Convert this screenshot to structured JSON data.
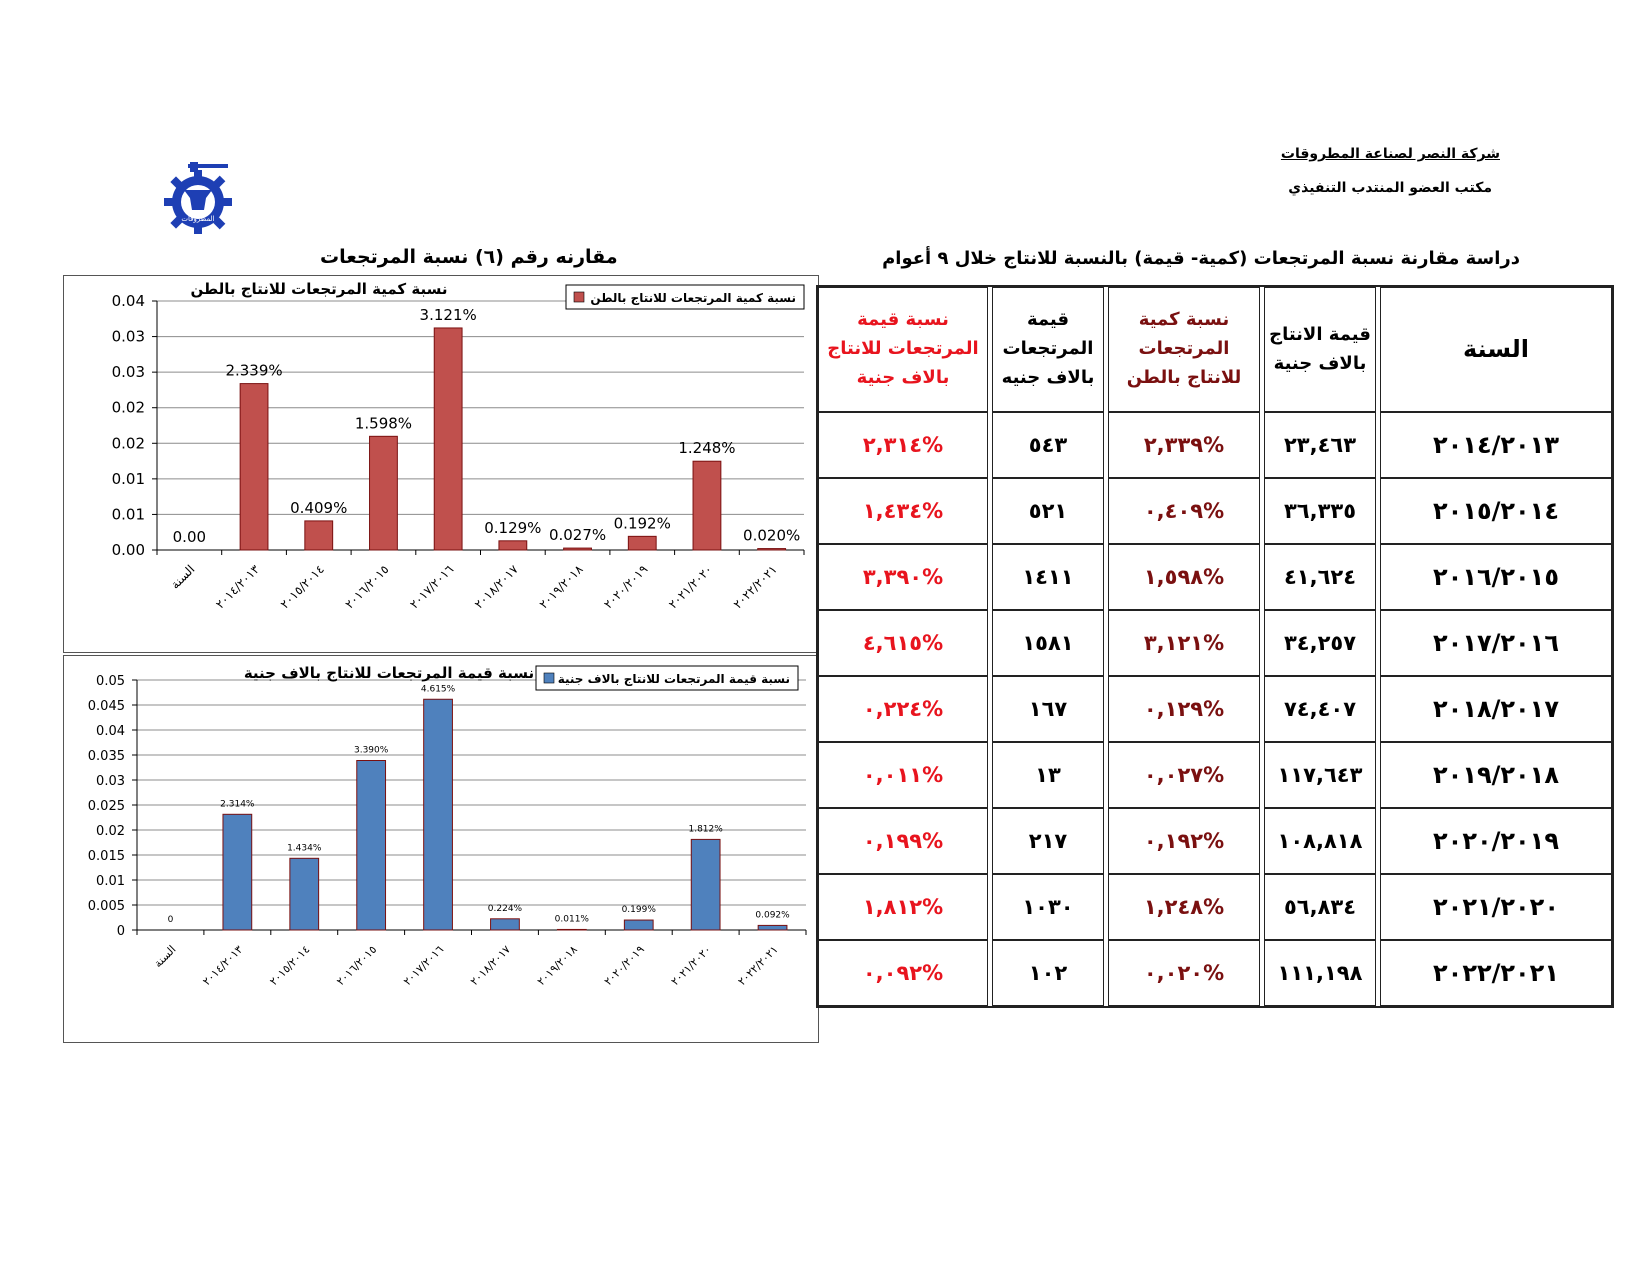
{
  "header": {
    "company": "شركة النصر لصناعة المطروقات",
    "office": "مكتب العضو المنتدب التنفيذي",
    "logo_text": "المطروقات",
    "study_title": "دراسة مقارنة نسبة المرتجعات (كمية- قيمة) بالنسبة للانتاج خلال ٩ أعوام",
    "comparison_title": "مقارنه رقم (٦) نسبة المرتجعات"
  },
  "colors": {
    "bar_red": "#c0504d",
    "bar_blue": "#4f81bd",
    "text_red": "#e8141e",
    "text_dark_red": "#7a1010"
  },
  "table": {
    "headers": {
      "year": "السنة",
      "production": "قيمة الانتاج بالاف جنية",
      "qty_ratio": "نسبة كمية المرتجعات للانتاج بالطن",
      "returns_value": "قيمة المرتجعات بالاف جنيه",
      "value_ratio": "نسبة قيمة المرتجعات للانتاج بالاف جنية"
    },
    "rows": [
      {
        "year": "٢٠١٤/٢٠١٣",
        "production": "٢٣,٤٦٣",
        "qty_ratio": "%٢,٣٣٩",
        "returns_value": "٥٤٣",
        "value_ratio": "%٢,٣١٤"
      },
      {
        "year": "٢٠١٥/٢٠١٤",
        "production": "٣٦,٣٣٥",
        "qty_ratio": "%٠,٤٠٩",
        "returns_value": "٥٢١",
        "value_ratio": "%١,٤٣٤"
      },
      {
        "year": "٢٠١٦/٢٠١٥",
        "production": "٤١,٦٢٤",
        "qty_ratio": "%١,٥٩٨",
        "returns_value": "١٤١١",
        "value_ratio": "%٣,٣٩٠"
      },
      {
        "year": "٢٠١٧/٢٠١٦",
        "production": "٣٤,٢٥٧",
        "qty_ratio": "%٣,١٢١",
        "returns_value": "١٥٨١",
        "value_ratio": "%٤,٦١٥"
      },
      {
        "year": "٢٠١٨/٢٠١٧",
        "production": "٧٤,٤٠٧",
        "qty_ratio": "%٠,١٢٩",
        "returns_value": "١٦٧",
        "value_ratio": "%٠,٢٢٤"
      },
      {
        "year": "٢٠١٩/٢٠١٨",
        "production": "١١٧,٦٤٣",
        "qty_ratio": "%٠,٠٢٧",
        "returns_value": "١٣",
        "value_ratio": "%٠,٠١١"
      },
      {
        "year": "٢٠٢٠/٢٠١٩",
        "production": "١٠٨,٨١٨",
        "qty_ratio": "%٠,١٩٢",
        "returns_value": "٢١٧",
        "value_ratio": "%٠,١٩٩"
      },
      {
        "year": "٢٠٢١/٢٠٢٠",
        "production": "٥٦,٨٣٤",
        "qty_ratio": "%١,٢٤٨",
        "returns_value": "١٠٣٠",
        "value_ratio": "%١,٨١٢"
      },
      {
        "year": "٢٠٢٢/٢٠٢١",
        "production": "١١١,١٩٨",
        "qty_ratio": "%٠,٠٢٠",
        "returns_value": "١٠٢",
        "value_ratio": "%٠,٠٩٢"
      }
    ]
  },
  "chart_data": [
    {
      "type": "bar",
      "title": "نسبة كمية المرتجعات للانتاج بالطن",
      "legend": "نسبة كمية المرتجعات للانتاج بالطن",
      "legend_position": "top-right",
      "categories": [
        "السنة",
        "٢٠١٤/٢٠١٣",
        "٢٠١٥/٢٠١٤",
        "٢٠١٦/٢٠١٥",
        "٢٠١٧/٢٠١٦",
        "٢٠١٨/٢٠١٧",
        "٢٠١٩/٢٠١٨",
        "٢٠٢٠/٢٠١٩",
        "٢٠٢١/٢٠٢٠",
        "٢٠٢٢/٢٠٢١"
      ],
      "values": [
        0,
        0.02339,
        0.00409,
        0.01598,
        0.03121,
        0.00129,
        0.00027,
        0.00192,
        0.01248,
        0.0002
      ],
      "data_labels": [
        "0.00",
        "2.339%",
        "0.409%",
        "1.598%",
        "3.121%",
        "0.129%",
        "0.027%",
        "0.192%",
        "1.248%",
        "0.020%"
      ],
      "ylim": [
        0,
        0.035
      ],
      "yticks": [
        0,
        0.005,
        0.01,
        0.015,
        0.02,
        0.025,
        0.03,
        0.035
      ],
      "ytick_labels": [
        "0.00",
        "0.01",
        "0.01",
        "0.02",
        "0.02",
        "0.03",
        "0.03",
        "0.04"
      ],
      "grid": true,
      "color": "#c0504d"
    },
    {
      "type": "bar",
      "title": "نسبة قيمة المرتجعات للانتاج بالاف جنية",
      "legend": "نسبة قيمة المرتجعات للانتاج بالاف جنية",
      "legend_position": "top-right",
      "categories": [
        "السنة",
        "٢٠١٤/٢٠١٣",
        "٢٠١٥/٢٠١٤",
        "٢٠١٦/٢٠١٥",
        "٢٠١٧/٢٠١٦",
        "٢٠١٨/٢٠١٧",
        "٢٠١٩/٢٠١٨",
        "٢٠٢٠/٢٠١٩",
        "٢٠٢١/٢٠٢٠",
        "٢٠٢٢/٢٠٢١"
      ],
      "values": [
        0,
        0.02314,
        0.01434,
        0.0339,
        0.04615,
        0.00224,
        0.00011,
        0.00199,
        0.01812,
        0.00092
      ],
      "data_labels": [
        "0",
        "2.314%",
        "1.434%",
        "3.390%",
        "4.615%",
        "0.224%",
        "0.011%",
        "0.199%",
        "1.812%",
        "0.092%"
      ],
      "ylim": [
        0,
        0.05
      ],
      "yticks": [
        0,
        0.005,
        0.01,
        0.015,
        0.02,
        0.025,
        0.03,
        0.035,
        0.04,
        0.045,
        0.05
      ],
      "ytick_labels": [
        "0",
        "0.005",
        "0.01",
        "0.015",
        "0.02",
        "0.025",
        "0.03",
        "0.035",
        "0.04",
        "0.045",
        "0.05"
      ],
      "grid": true,
      "color": "#4f81bd"
    }
  ]
}
